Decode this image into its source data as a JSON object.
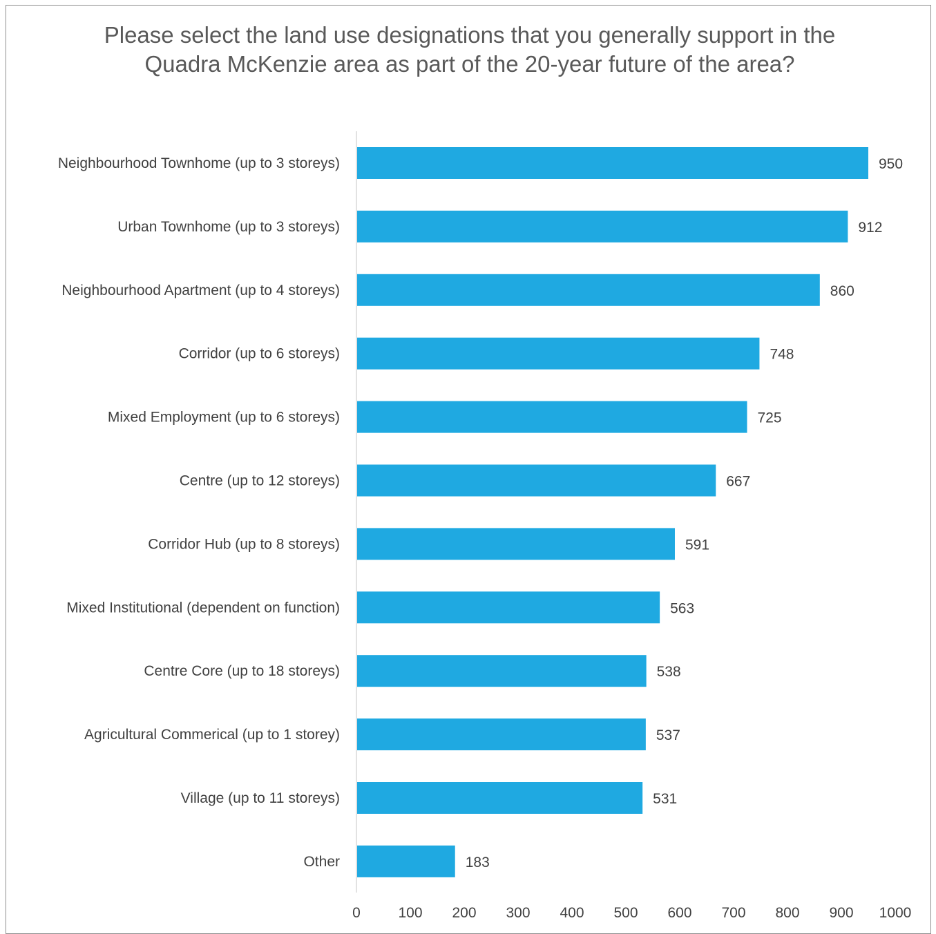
{
  "chart_data": {
    "type": "bar",
    "orientation": "horizontal",
    "title": "Please select the land use designations that you generally support in the Quadra McKenzie area as part of the 20-year future of the area?",
    "categories": [
      "Neighbourhood Townhome (up to 3 storeys)",
      "Urban Townhome (up to 3 storeys)",
      "Neighbourhood Apartment (up to 4 storeys)",
      "Corridor (up to 6 storeys)",
      "Mixed Employment (up to 6 storeys)",
      "Centre (up to 12 storeys)",
      "Corridor Hub (up to 8 storeys)",
      "Mixed Institutional (dependent on function)",
      "Centre Core (up to 18 storeys)",
      "Agricultural Commerical (up to 1 storey)",
      "Village (up to 11 storeys)",
      "Other"
    ],
    "values": [
      950,
      912,
      860,
      748,
      725,
      667,
      591,
      563,
      538,
      537,
      531,
      183
    ],
    "xlim": [
      0,
      1000
    ],
    "ticks": [
      "0",
      "100",
      "200",
      "300",
      "400",
      "500",
      "600",
      "700",
      "800",
      "900",
      "1000"
    ],
    "bar_color": "#1fa9e1",
    "grid": false,
    "legend": "none"
  }
}
